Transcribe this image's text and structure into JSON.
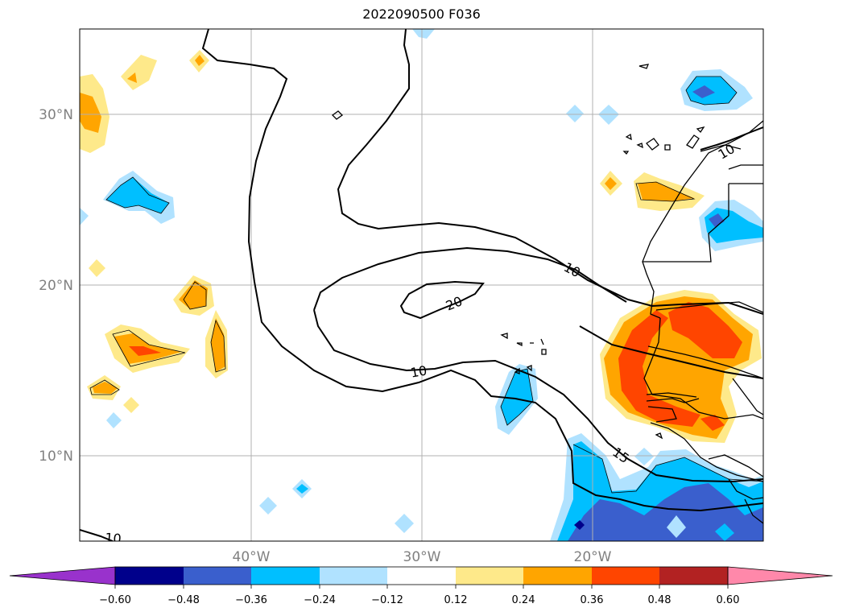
{
  "title": "2022090500 F036",
  "lat_labels": [
    "30°N",
    "20°N",
    "10°N"
  ],
  "lon_labels": [
    "40°W",
    "30°W",
    "20°W"
  ],
  "contour_labels": [
    "10",
    "20",
    "10",
    "15",
    "10",
    "10"
  ],
  "colorbar": {
    "ticks": [
      "−0.60",
      "−0.48",
      "−0.36",
      "−0.24",
      "−0.12",
      "0.12",
      "0.24",
      "0.36",
      "0.48",
      "0.60"
    ],
    "colors": [
      "#9932cc",
      "#00008b",
      "#3a5fcd",
      "#00bfff",
      "#b0e2ff",
      "#ffffff",
      "#fee98a",
      "#ffa500",
      "#ff4500",
      "#b22222",
      "#ff88aa"
    ]
  },
  "colors": {
    "neg_light": "#b0e2ff",
    "neg_mid": "#00bfff",
    "neg_dark": "#3a5fcd",
    "neg_deep": "#00008b",
    "pos_light": "#fee98a",
    "pos_mid": "#ffa500",
    "pos_dark": "#ff4500",
    "grid": "#b0b0b0"
  }
}
